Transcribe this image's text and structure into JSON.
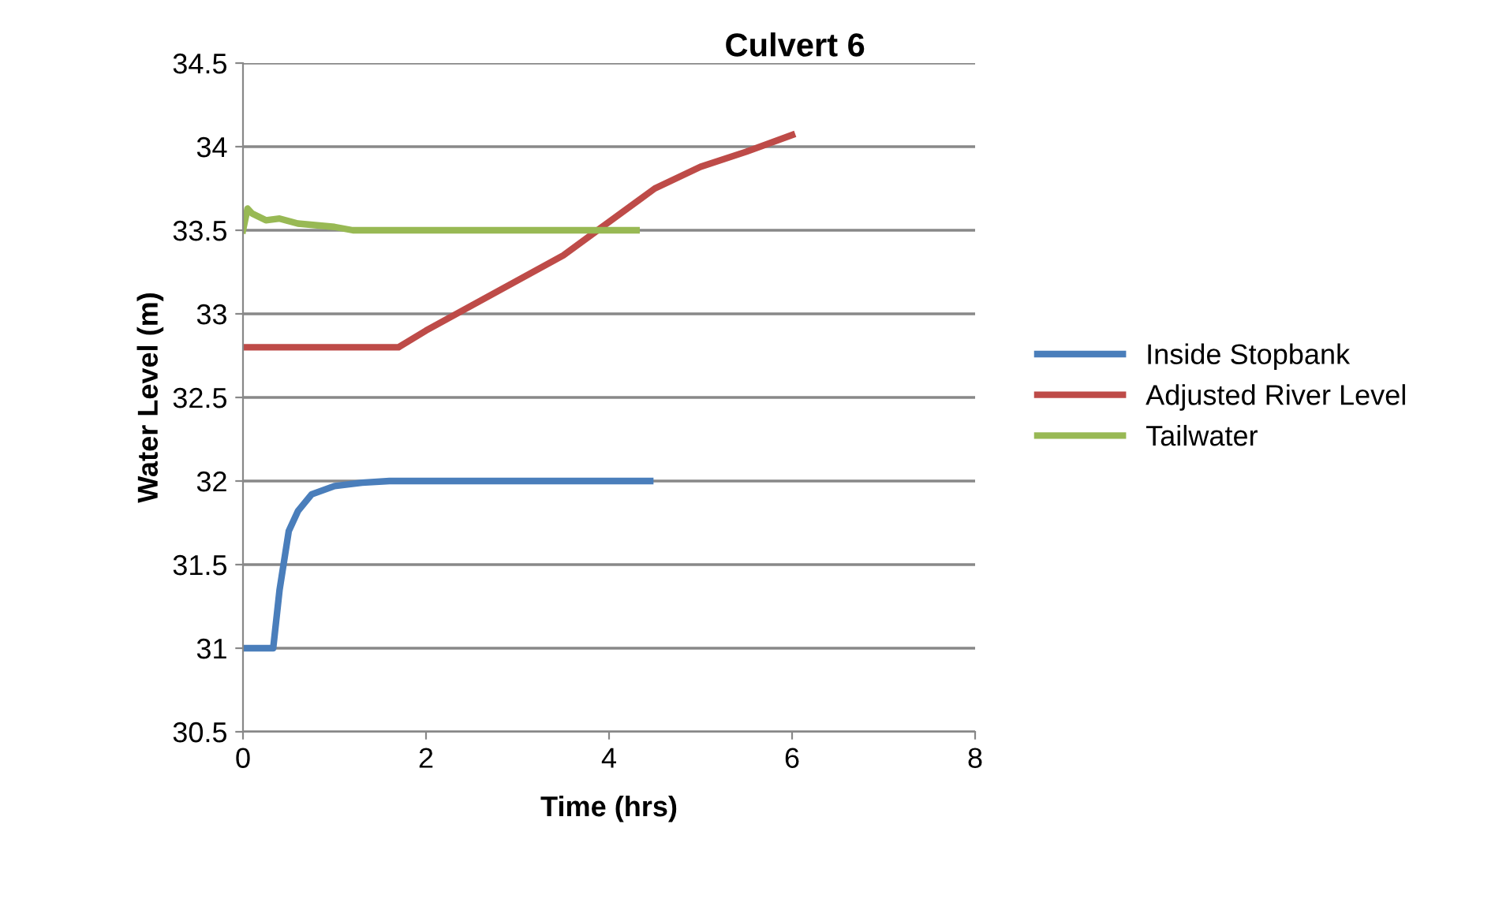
{
  "chart_data": {
    "type": "line",
    "title": "Culvert 6",
    "xlabel": "Time (hrs)",
    "ylabel": "Water Level (m)",
    "xlim": [
      0,
      8
    ],
    "xticks": [
      0,
      2,
      4,
      6,
      8
    ],
    "ylim": [
      30.5,
      34.5
    ],
    "yticks": [
      30.5,
      31,
      31.5,
      32,
      32.5,
      33,
      33.5,
      34,
      34.5
    ],
    "grid": "y",
    "legend": "right",
    "marker": "none",
    "line_style": "solid",
    "series": [
      {
        "name": "Inside Stopbank",
        "color": "#4a7ebb",
        "x": [
          0,
          0.33,
          0.4,
          0.5,
          0.6,
          0.75,
          1.0,
          1.3,
          1.6,
          2.5,
          3.5,
          4.45
        ],
        "values": [
          31.0,
          31.0,
          31.35,
          31.7,
          31.82,
          31.92,
          31.97,
          31.99,
          32.0,
          32.0,
          32.0,
          32.0
        ]
      },
      {
        "name": "Adjusted River Level",
        "color": "#be4b48",
        "x": [
          0,
          1.0,
          1.7,
          2.0,
          2.5,
          3.0,
          3.5,
          4.0,
          4.5,
          5.0,
          5.5,
          6.0
        ],
        "values": [
          32.8,
          32.8,
          32.8,
          32.9,
          33.05,
          33.2,
          33.35,
          33.55,
          33.75,
          33.88,
          33.97,
          34.07
        ]
      },
      {
        "name": "Tailwater",
        "color": "#98b954",
        "x": [
          0,
          0.05,
          0.1,
          0.25,
          0.4,
          0.6,
          1.0,
          1.2,
          2.5,
          4.3
        ],
        "values": [
          33.5,
          33.63,
          33.6,
          33.56,
          33.57,
          33.54,
          33.52,
          33.5,
          33.5,
          33.5
        ]
      }
    ]
  }
}
